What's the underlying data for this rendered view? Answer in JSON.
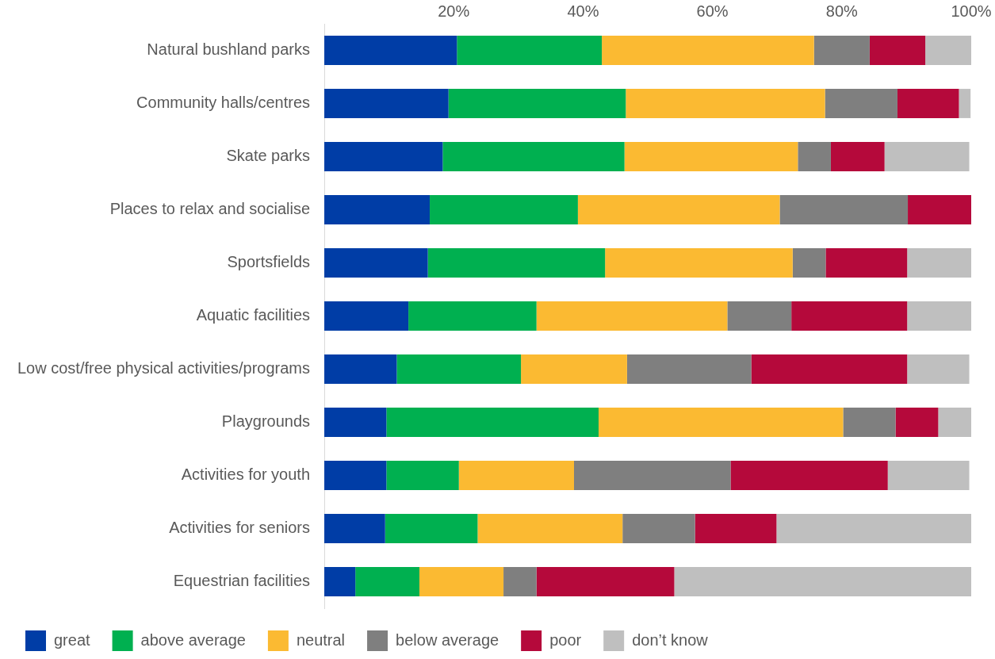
{
  "chart_data": {
    "type": "bar",
    "orientation": "horizontal",
    "stacked": true,
    "categories": [
      "Natural bushland parks",
      "Community halls/centres",
      "Skate parks",
      "Places to relax and socialise",
      "Sportsfields",
      "Aquatic facilities",
      "Low cost/free physical activities/programs",
      "Playgrounds",
      "Activities for youth",
      "Activities for seniors",
      "Equestrian facilities"
    ],
    "series": [
      {
        "name": "great",
        "color": "#003da6",
        "values": [
          20.5,
          19.2,
          18.3,
          16.3,
          16.0,
          13.0,
          11.2,
          9.6,
          9.6,
          9.4,
          4.8
        ]
      },
      {
        "name": "above average",
        "color": "#00b050",
        "values": [
          22.4,
          27.4,
          28.1,
          22.9,
          27.4,
          19.8,
          19.2,
          32.8,
          11.2,
          14.3,
          9.9
        ]
      },
      {
        "name": "neutral",
        "color": "#fbba32",
        "values": [
          32.8,
          30.8,
          26.8,
          31.2,
          29.0,
          29.5,
          16.4,
          37.8,
          17.8,
          22.4,
          13.0
        ]
      },
      {
        "name": "below average",
        "color": "#7f7f7f",
        "values": [
          8.6,
          11.2,
          5.1,
          19.8,
          5.1,
          9.9,
          19.2,
          8.1,
          24.2,
          11.2,
          5.1
        ]
      },
      {
        "name": "poor",
        "color": "#b5093b",
        "values": [
          8.6,
          9.5,
          8.3,
          9.9,
          12.6,
          17.9,
          24.1,
          6.6,
          24.3,
          12.6,
          21.3
        ]
      },
      {
        "name": "don’t know",
        "color": "#bfbfbf",
        "values": [
          7.2,
          1.8,
          13.1,
          0,
          9.9,
          9.9,
          9.6,
          5.1,
          12.6,
          30.2,
          45.9
        ]
      }
    ],
    "xlim": [
      0,
      100
    ],
    "xticks": [
      {
        "value": 0,
        "label": null
      },
      {
        "value": 20,
        "label": "20%"
      },
      {
        "value": 40,
        "label": "40%"
      },
      {
        "value": 60,
        "label": "60%"
      },
      {
        "value": 80,
        "label": "80%"
      },
      {
        "value": 100,
        "label": "100%"
      }
    ],
    "grid": false,
    "legend": "bottom"
  }
}
